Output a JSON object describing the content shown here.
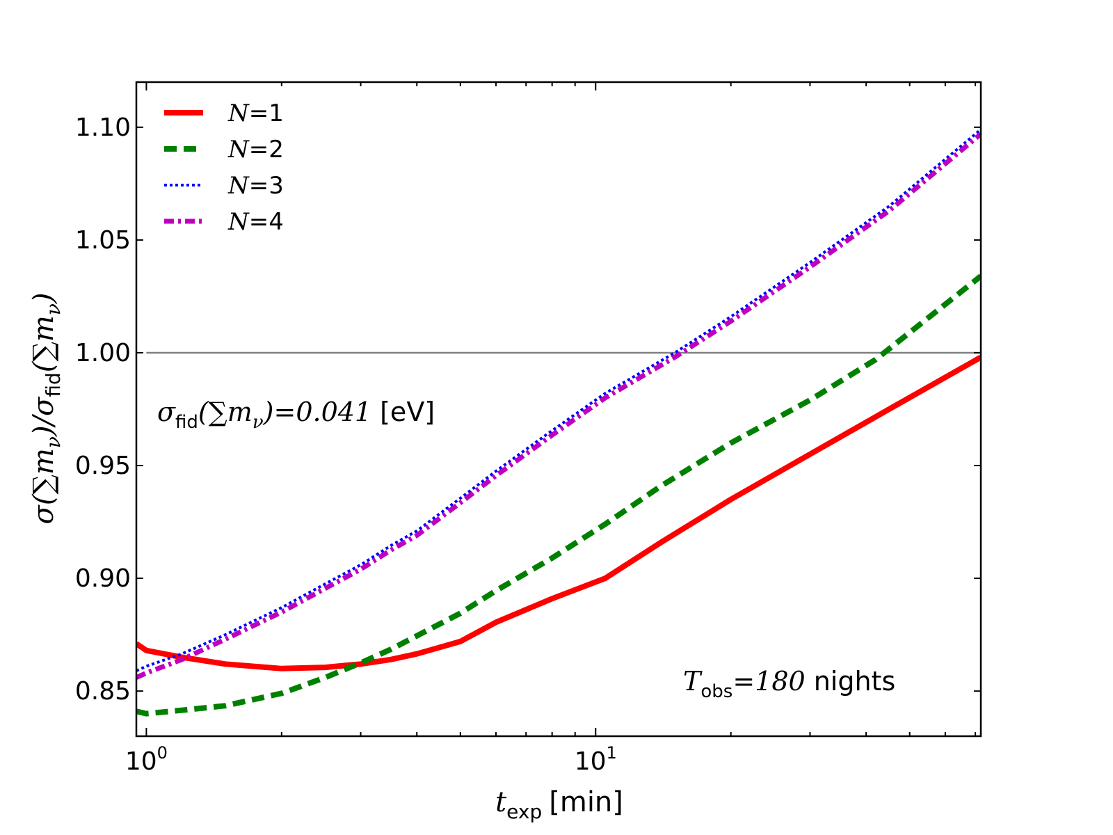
{
  "chart_data": {
    "type": "line",
    "title": "",
    "xlabel": {
      "math": "t",
      "sub": "exp",
      "unit": "[min]"
    },
    "ylabel": {
      "expr": "σ(∑m",
      "sub1": "ν",
      "mid": ")/σ",
      "sub2": "fid",
      "end": "(∑m",
      "sub3": "ν",
      "close": ")"
    },
    "x_scale": "log",
    "xlim": [
      0.95,
      72
    ],
    "ylim": [
      0.83,
      1.12
    ],
    "x_ticks": [
      {
        "value": 1,
        "base": "10",
        "exp": "0"
      },
      {
        "value": 10,
        "base": "10",
        "exp": "1"
      }
    ],
    "y_ticks": [
      {
        "value": 0.85,
        "label": "0.85"
      },
      {
        "value": 0.9,
        "label": "0.90"
      },
      {
        "value": 0.95,
        "label": "0.95"
      },
      {
        "value": 1.0,
        "label": "1.00"
      },
      {
        "value": 1.05,
        "label": "1.05"
      },
      {
        "value": 1.1,
        "label": "1.10"
      }
    ],
    "reference_line": {
      "y": 1.0,
      "color": "#808080"
    },
    "series": [
      {
        "name": "N=1",
        "label_var": "N",
        "label_eq": "=",
        "label_val": "1",
        "color": "#ff0000",
        "style": "solid",
        "x": [
          0.95,
          1.0,
          1.2,
          1.5,
          2.0,
          2.5,
          3.0,
          3.5,
          4.0,
          5.0,
          6.0,
          8.0,
          10.5,
          14.0,
          20.0,
          30.0,
          45.0,
          72.0
        ],
        "y": [
          0.871,
          0.868,
          0.865,
          0.862,
          0.86,
          0.8605,
          0.862,
          0.864,
          0.8665,
          0.872,
          0.8805,
          0.891,
          0.9,
          0.916,
          0.935,
          0.955,
          0.975,
          0.998
        ]
      },
      {
        "name": "N=2",
        "label_var": "N",
        "label_eq": "=",
        "label_val": "2",
        "color": "#008000",
        "style": "dashed",
        "x": [
          0.95,
          1.0,
          1.2,
          1.5,
          2.0,
          2.5,
          3.0,
          3.5,
          4.0,
          5.0,
          6.0,
          8.0,
          10.5,
          14.0,
          20.0,
          30.0,
          42.0,
          72.0
        ],
        "y": [
          0.841,
          0.84,
          0.8415,
          0.8435,
          0.849,
          0.856,
          0.8625,
          0.8685,
          0.8745,
          0.8845,
          0.8945,
          0.909,
          0.924,
          0.941,
          0.96,
          0.979,
          0.997,
          1.034
        ]
      },
      {
        "name": "N=3",
        "label_var": "N",
        "label_eq": "=",
        "label_val": "3",
        "color": "#0000ff",
        "style": "dotted",
        "x": [
          0.95,
          1.0,
          1.2,
          1.5,
          2.0,
          2.5,
          3.0,
          3.5,
          4.0,
          5.0,
          6.0,
          8.0,
          10.5,
          15.0,
          20.0,
          30.0,
          45.0,
          72.0
        ],
        "y": [
          0.859,
          0.861,
          0.8665,
          0.875,
          0.887,
          0.8975,
          0.906,
          0.9145,
          0.921,
          0.9355,
          0.9475,
          0.9655,
          0.982,
          1.0,
          1.016,
          1.04,
          1.065,
          1.099
        ]
      },
      {
        "name": "N=4",
        "label_var": "N",
        "label_eq": "=",
        "label_val": "4",
        "color": "#bf00bf",
        "style": "dashdot",
        "x": [
          0.95,
          1.0,
          1.2,
          1.5,
          2.0,
          2.5,
          3.0,
          3.5,
          4.0,
          5.0,
          6.0,
          8.0,
          10.5,
          15.0,
          20.0,
          30.0,
          45.0,
          72.0
        ],
        "y": [
          0.856,
          0.858,
          0.864,
          0.873,
          0.885,
          0.8955,
          0.904,
          0.9125,
          0.919,
          0.9335,
          0.9455,
          0.9635,
          0.98,
          0.998,
          1.014,
          1.038,
          1.063,
          1.097
        ]
      }
    ],
    "annotations": [
      {
        "id": "sigma-fid",
        "math_pre": "σ",
        "sub": "fid",
        "math_post": "(∑m",
        "sub2": "ν",
        "math_end": ")=0.041",
        "unit": "[eV]"
      },
      {
        "id": "t-obs",
        "math_pre": "T",
        "sub": "obs",
        "math_post": "=180",
        "unit": "nights"
      }
    ],
    "legend_position": "top-left"
  }
}
